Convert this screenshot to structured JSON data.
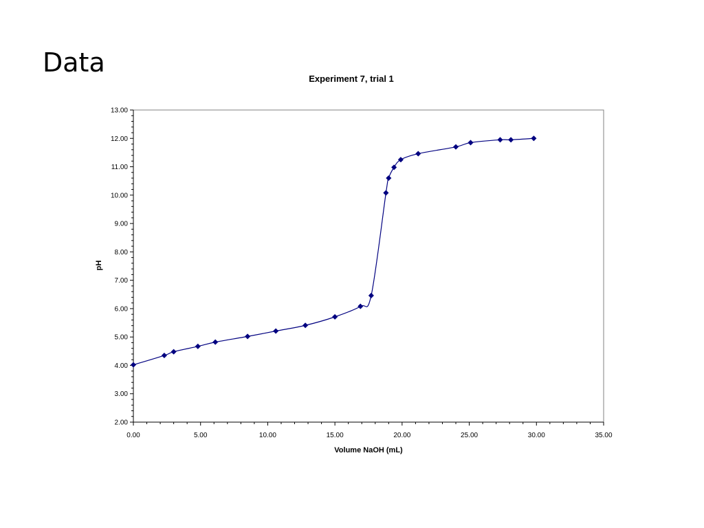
{
  "slide": {
    "title": "Data"
  },
  "chart_data": {
    "type": "scatter",
    "title": "Experiment 7, trial 1",
    "xlabel": "Volume NaOH (mL)",
    "ylabel": "pH",
    "xlim": [
      0,
      35
    ],
    "ylim": [
      2,
      13
    ],
    "xticks": [
      "0.00",
      "5.00",
      "10.00",
      "15.00",
      "20.00",
      "25.00",
      "30.00",
      "35.00"
    ],
    "yticks": [
      "2.00",
      "3.00",
      "4.00",
      "5.00",
      "6.00",
      "7.00",
      "8.00",
      "9.00",
      "10.00",
      "11.00",
      "12.00",
      "13.00"
    ],
    "grid": false,
    "smooth_line": true,
    "marker": "diamond",
    "color": "#000080",
    "series": [
      {
        "x": [
          0.0,
          2.3,
          3.0,
          4.8,
          6.1,
          8.5,
          10.6,
          12.8,
          15.0,
          16.9,
          17.7,
          18.8,
          19.0,
          19.4,
          19.9,
          21.2,
          24.0,
          25.1,
          27.3,
          28.1,
          29.8
        ],
        "y": [
          4.02,
          4.35,
          4.48,
          4.67,
          4.82,
          5.02,
          5.21,
          5.41,
          5.71,
          6.08,
          6.46,
          10.08,
          10.6,
          10.98,
          11.25,
          11.46,
          11.7,
          11.85,
          11.95,
          11.95,
          12.0
        ]
      }
    ]
  }
}
